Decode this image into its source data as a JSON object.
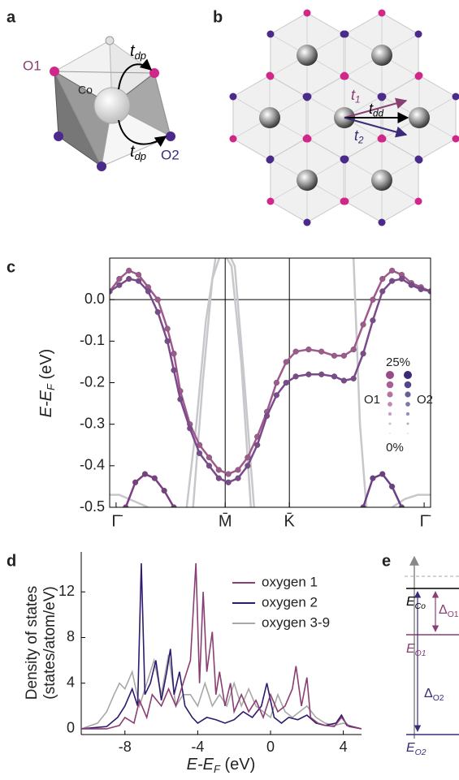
{
  "panel_labels": [
    "a",
    "b",
    "c",
    "d",
    "e"
  ],
  "panel_a": {
    "o1": "O1",
    "co": "Co",
    "o2": "O2",
    "hop": {
      "symbol": "t",
      "sub": "dp"
    }
  },
  "panel_b": {
    "hops": [
      {
        "symbol": "t",
        "sub": "1"
      },
      {
        "symbol": "t",
        "sub": "dd"
      },
      {
        "symbol": "t",
        "sub": "2"
      }
    ]
  },
  "panel_e": {
    "levels": [
      {
        "symbol": "E",
        "sub": "Co"
      },
      {
        "symbol": "E",
        "sub": "O1"
      },
      {
        "symbol": "E",
        "sub": "O2"
      }
    ],
    "gaps": [
      {
        "symbol": "Δ",
        "sub": "O1"
      },
      {
        "symbol": "Δ",
        "sub": "O2"
      }
    ]
  },
  "chart_data": [
    {
      "type": "line",
      "ylabel_parts": [
        "E-E",
        "F",
        " (eV)"
      ],
      "xlim": [
        0,
        1
      ],
      "xticks": [
        {
          "value": 0.02,
          "label": "Γ̄"
        },
        {
          "value": 0.36,
          "label": "M̄"
        },
        {
          "value": 0.56,
          "label": "K̄"
        },
        {
          "value": 0.98,
          "label": "Γ̄"
        }
      ],
      "ylim": [
        -0.5,
        0.1
      ],
      "yticks": [
        {
          "value": 0,
          "label": "0.0"
        },
        -0.1,
        -0.2,
        -0.3,
        -0.4,
        -0.5
      ],
      "legend": {
        "top": "25%",
        "bottom": "0%",
        "labels": [
          "O1",
          "O2"
        ],
        "colors": [
          "#9a4a86",
          "#3c2a78"
        ]
      },
      "series": [
        {
          "color": "#c8c8cc",
          "marker": false,
          "x": [
            0.24,
            0.27,
            0.3,
            0.33,
            0.36,
            0.39,
            0.42,
            0.45
          ],
          "values": [
            -0.5,
            -0.3,
            -0.05,
            0.1,
            0.13,
            0.08,
            -0.2,
            -0.5
          ]
        },
        {
          "color": "#c8c8cc",
          "marker": false,
          "x": [
            0.26,
            0.29,
            0.32,
            0.35,
            0.38,
            0.41,
            0.44
          ],
          "values": [
            -0.5,
            -0.2,
            0.05,
            0.12,
            0.08,
            -0.15,
            -0.5
          ]
        },
        {
          "color": "#c8c8cc",
          "marker": false,
          "x": [
            0.76,
            0.77,
            0.78,
            0.8
          ],
          "values": [
            0.1,
            -0.1,
            -0.3,
            -0.5
          ]
        },
        {
          "color": "#c8c8cc",
          "marker": false,
          "x": [
            0,
            0.03,
            0.06,
            0.09,
            0.12
          ],
          "values": [
            -0.47,
            -0.47,
            -0.48,
            -0.49,
            -0.5
          ]
        },
        {
          "color": "#c8c8cc",
          "marker": false,
          "x": [
            0.88,
            0.92,
            0.96,
            1
          ],
          "values": [
            -0.5,
            -0.48,
            -0.47,
            -0.47
          ]
        },
        {
          "color": "#a0598c",
          "marker": true,
          "x": [
            0,
            0.03,
            0.06,
            0.09,
            0.12,
            0.15,
            0.18,
            0.2,
            0.22,
            0.25,
            0.28,
            0.31,
            0.34,
            0.37,
            0.4,
            0.43,
            0.46,
            0.49,
            0.52,
            0.55,
            0.58,
            0.62,
            0.66,
            0.7,
            0.73,
            0.76,
            0.79,
            0.82,
            0.85,
            0.88,
            0.91,
            0.94,
            0.97,
            1.0
          ],
          "values": [
            0.02,
            0.05,
            0.07,
            0.06,
            0.03,
            0,
            -0.07,
            -0.13,
            -0.22,
            -0.3,
            -0.35,
            -0.38,
            -0.41,
            -0.42,
            -0.41,
            -0.38,
            -0.33,
            -0.27,
            -0.2,
            -0.15,
            -0.125,
            -0.12,
            -0.125,
            -0.135,
            -0.135,
            -0.12,
            -0.06,
            0,
            0.05,
            0.07,
            0.06,
            0.04,
            0.03,
            0.02
          ]
        },
        {
          "color": "#7a4a8c",
          "marker": true,
          "x": [
            0,
            0.03,
            0.06,
            0.09,
            0.12,
            0.15,
            0.18,
            0.2,
            0.22,
            0.25,
            0.28,
            0.31,
            0.34,
            0.37,
            0.4,
            0.43,
            0.46,
            0.49,
            0.52,
            0.55,
            0.58,
            0.62,
            0.66,
            0.7,
            0.73,
            0.76,
            0.79,
            0.82,
            0.85,
            0.88,
            0.91,
            0.94,
            0.97,
            1.0
          ],
          "values": [
            0.02,
            0.035,
            0.05,
            0.045,
            0.02,
            -0.03,
            -0.1,
            -0.17,
            -0.24,
            -0.31,
            -0.37,
            -0.4,
            -0.43,
            -0.44,
            -0.43,
            -0.4,
            -0.35,
            -0.28,
            -0.23,
            -0.2,
            -0.185,
            -0.18,
            -0.18,
            -0.185,
            -0.195,
            -0.19,
            -0.13,
            -0.05,
            0.02,
            0.045,
            0.05,
            0.035,
            0.025,
            0.02
          ]
        },
        {
          "color": "#7a3f82",
          "marker": true,
          "x": [
            0.05,
            0.08,
            0.11,
            0.14,
            0.17,
            0.2
          ],
          "values": [
            -0.5,
            -0.44,
            -0.42,
            -0.43,
            -0.46,
            -0.5
          ]
        },
        {
          "color": "#6a3f86",
          "marker": true,
          "x": [
            0.79,
            0.82,
            0.85,
            0.88,
            0.91
          ],
          "values": [
            -0.5,
            -0.43,
            -0.42,
            -0.45,
            -0.5
          ]
        }
      ]
    },
    {
      "type": "line",
      "xlabel_parts": [
        "E-E",
        "F",
        " (eV)"
      ],
      "ylabel_lines": [
        "Density of states",
        "(states/atom/eV)"
      ],
      "xlim": [
        -10.4,
        5
      ],
      "xticks": [
        -8,
        -4,
        0,
        4
      ],
      "ylim": [
        -0.5,
        15.5
      ],
      "yticks": [
        0,
        4,
        8,
        12
      ],
      "series": [
        {
          "name": "oxygen 1",
          "color": "#8a3f72",
          "x": [
            -10.4,
            -9,
            -8.3,
            -8,
            -7.5,
            -7.2,
            -6.8,
            -6.5,
            -6,
            -5.6,
            -5.2,
            -4.8,
            -4.4,
            -4.1,
            -3.9,
            -3.7,
            -3.5,
            -3.2,
            -3.0,
            -2.8,
            -2.5,
            -2.2,
            -2,
            -1.6,
            -1.2,
            -0.8,
            -0.4,
            0,
            0.4,
            0.8,
            1.2,
            1.4,
            1.7,
            2,
            2.2,
            2.6,
            3,
            3.5,
            3.9,
            4.3,
            5
          ],
          "values": [
            0,
            0,
            0.3,
            1,
            0.5,
            2.5,
            1,
            3,
            2,
            3.5,
            2,
            4,
            6,
            14.5,
            4,
            12,
            5,
            8.5,
            3,
            5,
            2,
            4,
            1.5,
            3,
            1.5,
            2.5,
            1,
            3,
            1.5,
            2,
            3.5,
            5.5,
            2,
            4.5,
            1,
            0.5,
            0.3,
            0.2,
            1,
            0.2,
            0
          ]
        },
        {
          "name": "oxygen 2",
          "color": "#2e1a6e",
          "x": [
            -10.4,
            -9,
            -8.4,
            -8,
            -7.6,
            -7.3,
            -7.1,
            -6.9,
            -6.6,
            -6.3,
            -6,
            -5.7,
            -5.5,
            -5.3,
            -5,
            -4.7,
            -4.3,
            -4,
            -3.5,
            -3,
            -2.5,
            -2,
            -1.5,
            -1,
            -0.5,
            -0.2,
            0.2,
            0.6,
            1,
            1.5,
            2,
            2.5,
            3,
            3.6,
            3.9,
            4.2,
            5
          ],
          "values": [
            0,
            0.2,
            1,
            2,
            3.5,
            2,
            14.5,
            3,
            4,
            6,
            2.5,
            5,
            7,
            3,
            5,
            2,
            1,
            0.5,
            1,
            0.8,
            0.5,
            0.8,
            1.5,
            1,
            2,
            4,
            1,
            0.5,
            1,
            0.8,
            1.2,
            0.5,
            0.3,
            0.5,
            1.2,
            0.3,
            0
          ]
        },
        {
          "name": "oxygen 3-9",
          "color": "#a8a8a8",
          "x": [
            -10.4,
            -9.5,
            -9,
            -8.6,
            -8.3,
            -8,
            -7.6,
            -7.2,
            -6.8,
            -6.4,
            -6,
            -5.6,
            -5.2,
            -4.8,
            -4.4,
            -4,
            -3.6,
            -3.2,
            -2.8,
            -2.4,
            -2,
            -1.6,
            -1.2,
            -0.8,
            -0.4,
            0,
            0.4,
            0.8,
            1.2,
            1.6,
            2,
            2.5,
            3,
            3.5,
            4,
            4.5,
            5
          ],
          "values": [
            0,
            0.5,
            1.5,
            3,
            4,
            3.5,
            5,
            2,
            4,
            6,
            3,
            6.5,
            2,
            3,
            3,
            2,
            4,
            2,
            3,
            2,
            4,
            2,
            3.5,
            2,
            1.5,
            1,
            3,
            1.5,
            1,
            1.5,
            2,
            1,
            0.5,
            0.3,
            0.5,
            0.2,
            0
          ]
        }
      ]
    }
  ]
}
